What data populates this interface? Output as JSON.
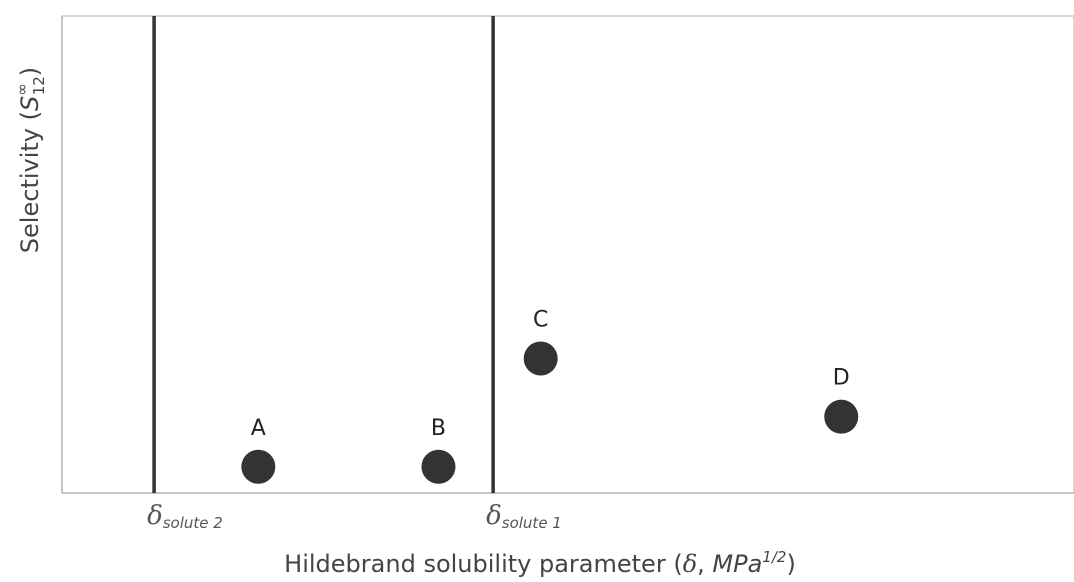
{
  "chart_data": {
    "type": "scatter",
    "title": "",
    "xlabel": {
      "main": "Hildebrand solubility parameter (",
      "symbol": "δ",
      "sep": ", ",
      "unit": "MPa",
      "exp": "1/2",
      "close": ")"
    },
    "ylabel": {
      "main": "Selectivity (",
      "symbol": "S",
      "sup": "∞",
      "sub": "12",
      "close": ")"
    },
    "xlim": [
      0,
      100
    ],
    "ylim": [
      0,
      100
    ],
    "grid": false,
    "reference_lines": [
      {
        "symbol": "δ",
        "subscript": "solute 2",
        "x": 9.1
      },
      {
        "symbol": "δ",
        "subscript": "solute 1",
        "x": 42.6
      }
    ],
    "points": [
      {
        "label": "A",
        "x": 19.4,
        "y": 5.5
      },
      {
        "label": "B",
        "x": 37.2,
        "y": 5.5
      },
      {
        "label": "C",
        "x": 47.3,
        "y": 28.2
      },
      {
        "label": "D",
        "x": 77.0,
        "y": 16.0
      }
    ],
    "colors": {
      "points": "#333333",
      "ref_lines": "#333333",
      "frame": "#cccccc"
    }
  }
}
